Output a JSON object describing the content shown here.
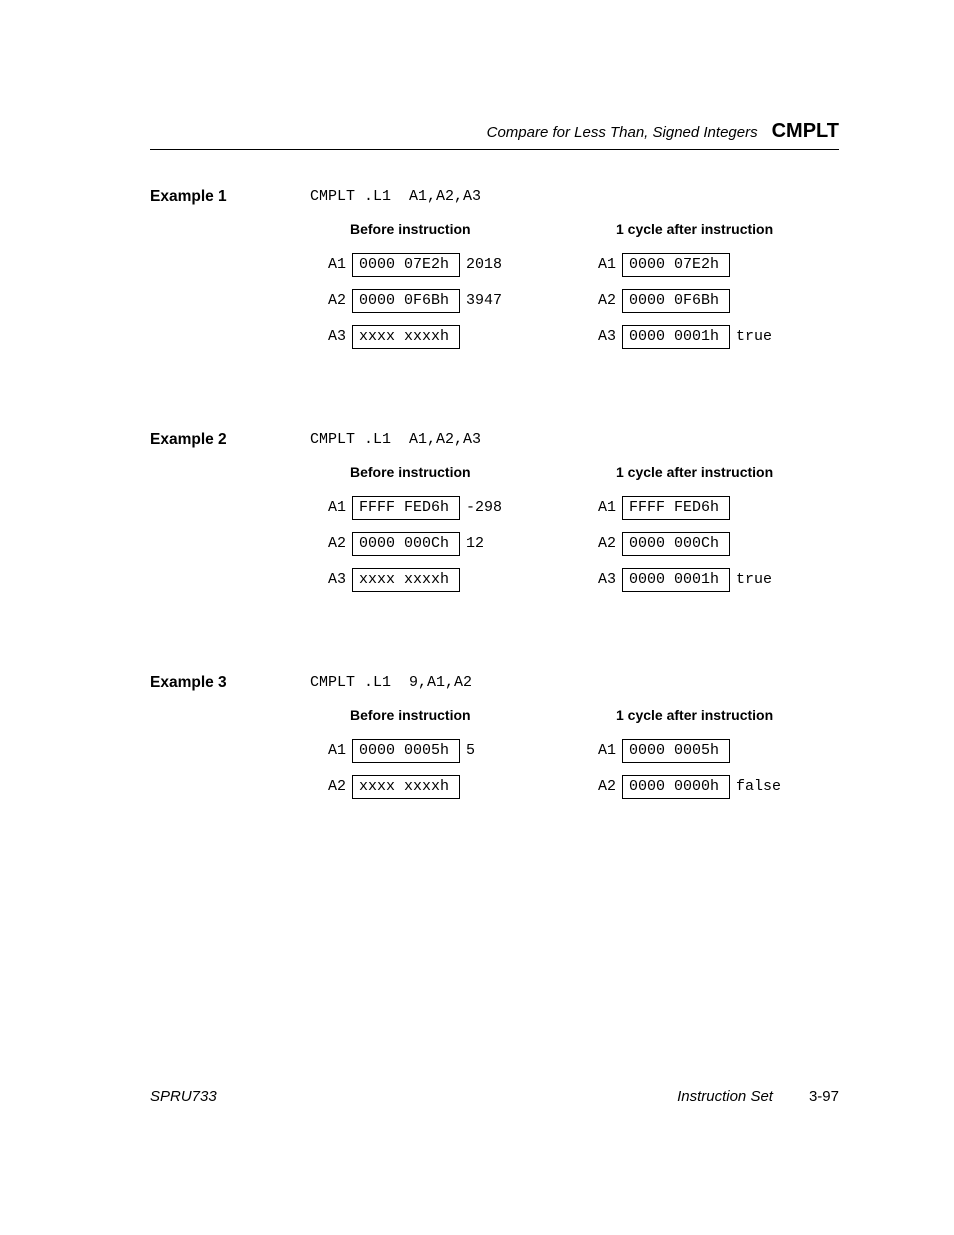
{
  "header": {
    "description": "Compare for Less Than, Signed Integers",
    "mnemonic": "CMPLT"
  },
  "examples": [
    {
      "label": "Example 1",
      "code": "CMPLT .L1  A1,A2,A3",
      "before_heading": "Before instruction",
      "after_heading": "1 cycle after instruction",
      "before": [
        {
          "reg": "A1",
          "val": "0000 07E2h",
          "note": "2018"
        },
        {
          "reg": "A2",
          "val": "0000 0F6Bh",
          "note": "3947"
        },
        {
          "reg": "A3",
          "val": "xxxx xxxxh",
          "note": ""
        }
      ],
      "after": [
        {
          "reg": "A1",
          "val": "0000 07E2h",
          "note": ""
        },
        {
          "reg": "A2",
          "val": "0000 0F6Bh",
          "note": ""
        },
        {
          "reg": "A3",
          "val": "0000 0001h",
          "note": "true"
        }
      ]
    },
    {
      "label": "Example 2",
      "code": "CMPLT .L1  A1,A2,A3",
      "before_heading": "Before instruction",
      "after_heading": "1 cycle after instruction",
      "before": [
        {
          "reg": "A1",
          "val": "FFFF FED6h",
          "note": "-298"
        },
        {
          "reg": "A2",
          "val": "0000 000Ch",
          "note": "12"
        },
        {
          "reg": "A3",
          "val": "xxxx xxxxh",
          "note": ""
        }
      ],
      "after": [
        {
          "reg": "A1",
          "val": "FFFF FED6h",
          "note": ""
        },
        {
          "reg": "A2",
          "val": "0000 000Ch",
          "note": ""
        },
        {
          "reg": "A3",
          "val": "0000 0001h",
          "note": "true"
        }
      ]
    },
    {
      "label": "Example 3",
      "code": "CMPLT .L1  9,A1,A2",
      "before_heading": "Before instruction",
      "after_heading": "1 cycle after instruction",
      "before": [
        {
          "reg": "A1",
          "val": "0000 0005h",
          "note": "5"
        },
        {
          "reg": "A2",
          "val": "xxxx xxxxh",
          "note": ""
        }
      ],
      "after": [
        {
          "reg": "A1",
          "val": "0000 0005h",
          "note": ""
        },
        {
          "reg": "A2",
          "val": "0000 0000h",
          "note": "false"
        }
      ]
    }
  ],
  "footer": {
    "doc_id": "SPRU733",
    "section": "Instruction Set",
    "page": "3-97"
  },
  "colors": {
    "text": "#000000",
    "background": "#ffffff",
    "border": "#000000"
  },
  "typography": {
    "body_font": "Arial, Helvetica, sans-serif",
    "mono_font": "Courier New, monospace",
    "header_mn_size_pt": 15,
    "header_desc_size_pt": 11,
    "label_size_pt": 11.5,
    "code_size_pt": 11,
    "footer_size_pt": 11
  }
}
